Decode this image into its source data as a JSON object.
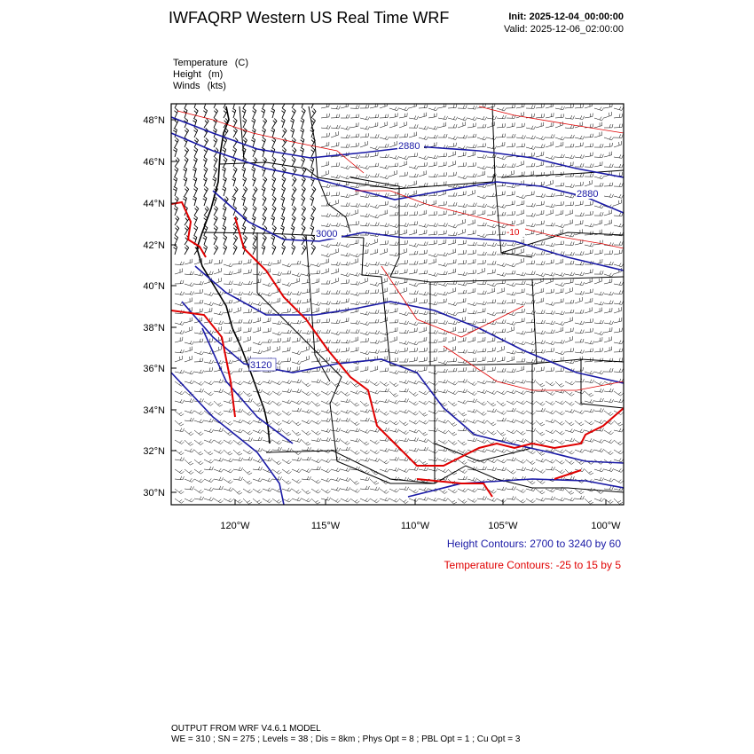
{
  "header": {
    "title": "IWFAQRP Western US Real Time WRF",
    "init": "Init: 2025-12-04_00:00:00",
    "valid": "Valid: 2025-12-06_02:00:00"
  },
  "fields": [
    {
      "name": "Temperature",
      "unit": "(C)"
    },
    {
      "name": "Height",
      "unit": "(m)"
    },
    {
      "name": "Winds",
      "unit": "(kts)"
    }
  ],
  "map": {
    "lat_labels": [
      "48°N",
      "46°N",
      "44°N",
      "42°N",
      "40°N",
      "38°N",
      "36°N",
      "34°N",
      "32°N",
      "30°N"
    ],
    "lon_labels": [
      "120°W",
      "115°W",
      "110°W",
      "105°W",
      "100°W"
    ],
    "height_contour_labels": [
      "2880",
      "2880",
      "3000",
      "3120"
    ],
    "temp_contour_labels": [
      "-10"
    ],
    "colors": {
      "height": "#1a1aa6",
      "temperature": "#e00000",
      "border": "#000000"
    }
  },
  "legend": {
    "height": "Height Contours: 2700 to 3240 by 60",
    "temperature": "Temperature Contours: -25 to 15 by 5"
  },
  "footer": {
    "line1": "OUTPUT FROM WRF V4.6.1 MODEL",
    "line2": "WE = 310 ; SN = 275 ; Levels = 38 ; Dis = 8km ; Phys Opt = 8 ; PBL Opt = 1 ; Cu Opt = 3"
  }
}
